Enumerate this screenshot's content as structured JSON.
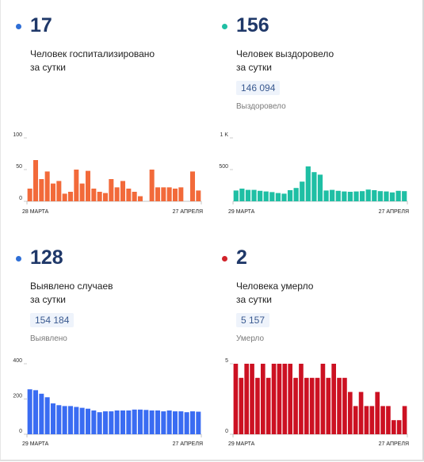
{
  "stats": [
    {
      "number": "17",
      "line1": "Человек госпитализировано",
      "line2": "за сутки",
      "total": "",
      "total_label": "",
      "color": "#2f6fd6"
    },
    {
      "number": "156",
      "line1": "Человек выздоровело",
      "line2": "за сутки",
      "total": "146 094",
      "total_label": "Выздоровело",
      "color": "#1fbfa4"
    },
    {
      "number": "128",
      "line1": "Выявлено случаев",
      "line2": "за сутки",
      "total": "154 184",
      "total_label": "Выявлено",
      "color": "#2f6fd6"
    },
    {
      "number": "2",
      "line1": "Человека умерло",
      "line2": "за сутки",
      "total": "5 157",
      "total_label": "Умерло",
      "color": "#d1232a"
    }
  ],
  "chart_data": [
    {
      "type": "bar",
      "color": "#f26a3a",
      "x_start": "28 МАРТА",
      "x_end": "27 АПРЕЛЯ",
      "ylim": [
        0,
        100
      ],
      "y_ticks": [
        {
          "value": 0,
          "label": "0"
        },
        {
          "value": 50,
          "label": "50"
        },
        {
          "value": 100,
          "label": "100"
        }
      ],
      "values": [
        20,
        65,
        35,
        47,
        28,
        32,
        12,
        15,
        50,
        28,
        48,
        20,
        15,
        13,
        35,
        22,
        32,
        20,
        15,
        8,
        0,
        50,
        22,
        22,
        22,
        20,
        22,
        0,
        47,
        17
      ]
    },
    {
      "type": "bar",
      "color": "#1fbfa4",
      "x_start": "29 МАРТА",
      "x_end": "27 АПРЕЛЯ",
      "ylim": [
        0,
        1000
      ],
      "y_ticks": [
        {
          "value": 500,
          "label": "500"
        },
        {
          "value": 1000,
          "label": "1 K"
        }
      ],
      "values": [
        170,
        200,
        180,
        180,
        165,
        155,
        145,
        130,
        120,
        175,
        210,
        310,
        550,
        460,
        420,
        170,
        180,
        165,
        155,
        150,
        155,
        160,
        185,
        175,
        160,
        155,
        140,
        165,
        160
      ]
    },
    {
      "type": "bar",
      "color": "#3a6cf2",
      "x_start": "29 МАРТА",
      "x_end": "27 АПРЕЛЯ",
      "ylim": [
        0,
        400
      ],
      "y_ticks": [
        {
          "value": 0,
          "label": "0"
        },
        {
          "value": 200,
          "label": "200"
        },
        {
          "value": 400,
          "label": "400"
        }
      ],
      "values": [
        255,
        250,
        230,
        210,
        175,
        165,
        160,
        160,
        155,
        150,
        145,
        135,
        125,
        130,
        130,
        135,
        135,
        135,
        140,
        140,
        138,
        135,
        135,
        130,
        135,
        130,
        130,
        125,
        130,
        128
      ]
    },
    {
      "type": "bar",
      "color": "#cc1122",
      "x_start": "29 МАРТА",
      "x_end": "27 АПРЕЛЯ",
      "ylim": [
        0,
        5
      ],
      "y_ticks": [
        {
          "value": 0,
          "label": "0"
        },
        {
          "value": 5,
          "label": "5"
        }
      ],
      "values": [
        5,
        4,
        5,
        5,
        4,
        5,
        4,
        5,
        5,
        5,
        5,
        4,
        5,
        4,
        4,
        4,
        5,
        4,
        5,
        4,
        4,
        3,
        2,
        3,
        2,
        2,
        3,
        2,
        2,
        1,
        1,
        2
      ]
    }
  ]
}
